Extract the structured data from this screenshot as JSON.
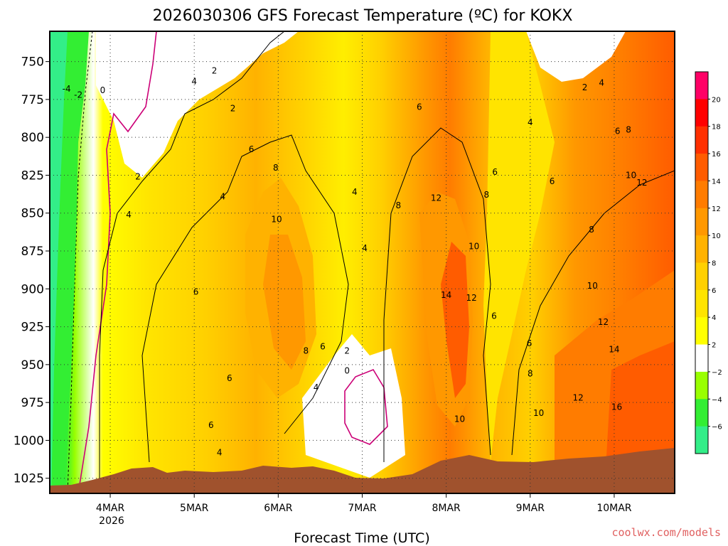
{
  "chart_data": {
    "type": "heatmap",
    "title": "2026030306 GFS Forecast Temperature (ºC) for KOKX",
    "xlabel": "Forecast Time (UTC)",
    "ylabel": "",
    "credit": "coolwx.com/models",
    "x_ticks": [
      "4MAR",
      "5MAR",
      "6MAR",
      "7MAR",
      "8MAR",
      "9MAR",
      "10MAR"
    ],
    "x_sub_label": "2026",
    "y_ticks": [
      750,
      775,
      800,
      825,
      850,
      875,
      900,
      925,
      950,
      975,
      1000,
      1025
    ],
    "ylim": [
      1035,
      730
    ],
    "xlim_days": [
      3.28,
      10.72
    ],
    "colorbar": {
      "levels": [
        -6,
        -4,
        -2,
        2,
        4,
        6,
        8,
        10,
        12,
        14,
        16,
        18,
        20
      ],
      "labels": [
        "−6",
        "−4",
        "−2",
        "2",
        "4",
        "6",
        "8",
        "10",
        "12",
        "14",
        "16",
        "18",
        "20"
      ],
      "colors": [
        "#33ee88",
        "#33ee33",
        "#99ff00",
        "#ffffff",
        "#ffff00",
        "#ffe400",
        "#ffd000",
        "#ffb200",
        "#ff9800",
        "#ff7c00",
        "#ff5c00",
        "#ff3000",
        "#ff0000",
        "#ff0066"
      ]
    },
    "ground_color": "#a0522d",
    "contour_labels": [
      {
        "text": "-4",
        "day": 3.48,
        "p": 768
      },
      {
        "text": "-2",
        "day": 3.62,
        "p": 772
      },
      {
        "text": "0",
        "day": 3.91,
        "p": 769
      },
      {
        "text": "2",
        "day": 4.33,
        "p": 826
      },
      {
        "text": "4",
        "day": 4.22,
        "p": 851
      },
      {
        "text": "4",
        "day": 5.0,
        "p": 763
      },
      {
        "text": "2",
        "day": 5.24,
        "p": 756
      },
      {
        "text": "2",
        "day": 5.46,
        "p": 781
      },
      {
        "text": "4",
        "day": 5.34,
        "p": 839
      },
      {
        "text": "6",
        "day": 5.68,
        "p": 808
      },
      {
        "text": "8",
        "day": 5.97,
        "p": 820
      },
      {
        "text": "10",
        "day": 5.98,
        "p": 854
      },
      {
        "text": "6",
        "day": 5.02,
        "p": 902
      },
      {
        "text": "6",
        "day": 5.42,
        "p": 959
      },
      {
        "text": "8",
        "day": 6.33,
        "p": 941
      },
      {
        "text": "6",
        "day": 6.53,
        "p": 938
      },
      {
        "text": "4",
        "day": 6.45,
        "p": 965
      },
      {
        "text": "6",
        "day": 5.2,
        "p": 990
      },
      {
        "text": "4",
        "day": 5.3,
        "p": 1008
      },
      {
        "text": "2",
        "day": 6.82,
        "p": 941
      },
      {
        "text": "0",
        "day": 6.82,
        "p": 954
      },
      {
        "text": "4",
        "day": 6.91,
        "p": 836
      },
      {
        "text": "4",
        "day": 7.03,
        "p": 873
      },
      {
        "text": "6",
        "day": 7.68,
        "p": 780
      },
      {
        "text": "8",
        "day": 7.43,
        "p": 845
      },
      {
        "text": "12",
        "day": 7.88,
        "p": 840
      },
      {
        "text": "6",
        "day": 8.58,
        "p": 823
      },
      {
        "text": "8",
        "day": 8.48,
        "p": 838
      },
      {
        "text": "10",
        "day": 8.33,
        "p": 872
      },
      {
        "text": "14",
        "day": 8.0,
        "p": 904
      },
      {
        "text": "12",
        "day": 8.3,
        "p": 906
      },
      {
        "text": "6",
        "day": 8.57,
        "p": 918
      },
      {
        "text": "10",
        "day": 8.16,
        "p": 986
      },
      {
        "text": "4",
        "day": 9.0,
        "p": 790
      },
      {
        "text": "2",
        "day": 9.65,
        "p": 767
      },
      {
        "text": "4",
        "day": 9.85,
        "p": 764
      },
      {
        "text": "6",
        "day": 9.26,
        "p": 829
      },
      {
        "text": "6",
        "day": 10.04,
        "p": 796
      },
      {
        "text": "8",
        "day": 10.17,
        "p": 795
      },
      {
        "text": "10",
        "day": 10.2,
        "p": 825
      },
      {
        "text": "12",
        "day": 10.33,
        "p": 830
      },
      {
        "text": "8",
        "day": 9.73,
        "p": 861
      },
      {
        "text": "10",
        "day": 9.74,
        "p": 898
      },
      {
        "text": "12",
        "day": 9.87,
        "p": 922
      },
      {
        "text": "14",
        "day": 10.0,
        "p": 940
      },
      {
        "text": "6",
        "day": 8.99,
        "p": 936
      },
      {
        "text": "8",
        "day": 9.0,
        "p": 956
      },
      {
        "text": "10",
        "day": 9.1,
        "p": 982
      },
      {
        "text": "12",
        "day": 9.57,
        "p": 972
      },
      {
        "text": "16",
        "day": 10.03,
        "p": 978
      }
    ]
  }
}
